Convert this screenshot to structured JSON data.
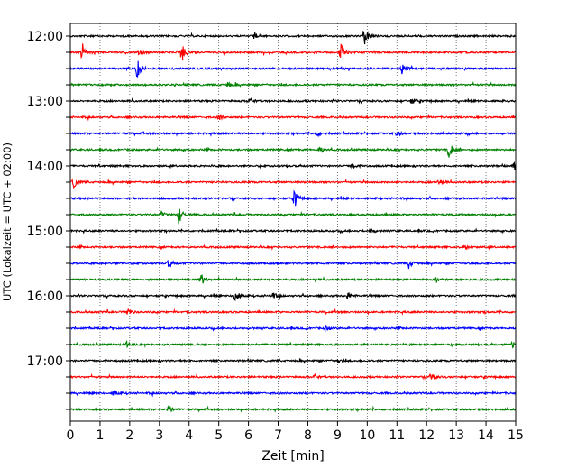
{
  "chart_data": {
    "type": "line",
    "title": "",
    "xlabel": "Zeit  [min]",
    "ylabel": "UTC (Lokalzeit = UTC + 02:00)",
    "xlim": [
      0,
      15
    ],
    "x_ticks": [
      "0",
      "1",
      "2",
      "3",
      "4",
      "5",
      "6",
      "7",
      "8",
      "9",
      "10",
      "11",
      "12",
      "13",
      "14",
      "15"
    ],
    "y_tick_labels": [
      "12:00",
      "13:00",
      "14:00",
      "15:00",
      "16:00",
      "17:00"
    ],
    "grid": "vertical dotted",
    "line_colors": [
      "#000000",
      "#ff0000",
      "#0000ff",
      "#008000"
    ],
    "traces": [
      {
        "start": "12:00",
        "events": [
          {
            "t": 9.9,
            "amp": 1.0
          },
          {
            "t": 6.2,
            "amp": 0.35
          }
        ]
      },
      {
        "start": "12:15",
        "events": [
          {
            "t": 0.4,
            "amp": 1.0
          },
          {
            "t": 3.75,
            "amp": 1.0
          },
          {
            "t": 9.1,
            "amp": 1.0
          },
          {
            "t": 2.3,
            "amp": 0.35
          }
        ]
      },
      {
        "start": "12:30",
        "events": [
          {
            "t": 2.25,
            "amp": 1.0
          },
          {
            "t": 11.15,
            "amp": 0.8
          }
        ]
      },
      {
        "start": "12:45",
        "events": [
          {
            "t": 5.3,
            "amp": 0.3
          }
        ]
      },
      {
        "start": "13:00",
        "events": [
          {
            "t": 6.0,
            "amp": 0.35
          },
          {
            "t": 11.5,
            "amp": 0.3
          }
        ]
      },
      {
        "start": "13:15",
        "events": [
          {
            "t": 5.0,
            "amp": 0.3
          }
        ]
      },
      {
        "start": "13:30",
        "events": [
          {
            "t": 8.3,
            "amp": 0.3
          },
          {
            "t": 11.0,
            "amp": 0.3
          }
        ]
      },
      {
        "start": "13:45",
        "events": [
          {
            "t": 12.75,
            "amp": 0.9
          },
          {
            "t": 8.4,
            "amp": 0.3
          }
        ]
      },
      {
        "start": "14:00",
        "events": [
          {
            "t": 9.5,
            "amp": 0.35
          },
          {
            "t": 14.95,
            "amp": 0.45
          }
        ]
      },
      {
        "start": "14:15",
        "events": [
          {
            "t": 0.1,
            "amp": 0.6
          },
          {
            "t": 12.4,
            "amp": 0.3
          }
        ]
      },
      {
        "start": "14:30",
        "events": [
          {
            "t": 7.55,
            "amp": 0.95
          }
        ]
      },
      {
        "start": "14:45",
        "events": [
          {
            "t": 3.65,
            "amp": 0.95
          },
          {
            "t": 3.05,
            "amp": 0.3
          }
        ]
      },
      {
        "start": "15:00",
        "events": [
          {
            "t": 10.1,
            "amp": 0.3
          }
        ]
      },
      {
        "start": "15:15",
        "events": [
          {
            "t": 13.3,
            "amp": 0.3
          }
        ]
      },
      {
        "start": "15:30",
        "events": [
          {
            "t": 11.4,
            "amp": 0.55
          },
          {
            "t": 3.3,
            "amp": 0.4
          }
        ]
      },
      {
        "start": "15:45",
        "events": [
          {
            "t": 4.4,
            "amp": 0.65
          },
          {
            "t": 12.3,
            "amp": 0.35
          }
        ]
      },
      {
        "start": "16:00",
        "events": [
          {
            "t": 5.55,
            "amp": 0.85
          },
          {
            "t": 6.8,
            "amp": 0.45
          },
          {
            "t": 9.35,
            "amp": 0.4
          }
        ]
      },
      {
        "start": "16:15",
        "events": [
          {
            "t": 1.9,
            "amp": 0.45
          }
        ]
      },
      {
        "start": "16:30",
        "events": [
          {
            "t": 8.6,
            "amp": 0.25
          }
        ]
      },
      {
        "start": "16:45",
        "events": [
          {
            "t": 1.9,
            "amp": 0.3
          },
          {
            "t": 14.9,
            "amp": 0.3
          }
        ]
      },
      {
        "start": "17:00",
        "events": [
          {
            "t": 9.0,
            "amp": 0.25
          }
        ]
      },
      {
        "start": "17:15",
        "events": [
          {
            "t": 12.15,
            "amp": 0.55
          },
          {
            "t": 8.2,
            "amp": 0.3
          }
        ]
      },
      {
        "start": "17:30",
        "events": [
          {
            "t": 1.45,
            "amp": 0.3
          }
        ]
      },
      {
        "start": "17:45",
        "events": [
          {
            "t": 3.3,
            "amp": 0.35
          }
        ]
      }
    ]
  }
}
